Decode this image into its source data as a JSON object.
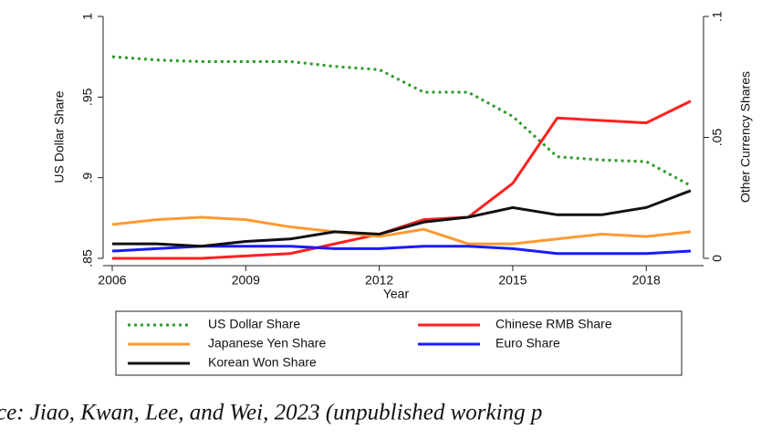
{
  "chart_data": {
    "type": "line",
    "x_label": "Year",
    "y_label": "US Dollar Share",
    "y2_label": "Other Currency Shares",
    "x": [
      2006,
      2007,
      2008,
      2009,
      2010,
      2011,
      2012,
      2013,
      2014,
      2015,
      2016,
      2017,
      2018,
      2019
    ],
    "xlim": [
      2006,
      2019
    ],
    "xticks": [
      2006,
      2009,
      2012,
      2015,
      2018
    ],
    "ylim": [
      0.85,
      1
    ],
    "yticks": [
      {
        "value": 0.85,
        "label": ".85"
      },
      {
        "value": 0.9,
        "label": ".9"
      },
      {
        "value": 0.95,
        "label": ".95"
      },
      1
    ],
    "y2lim": [
      0,
      0.1
    ],
    "y2ticks": [
      0,
      {
        "value": 0.05,
        "label": ".05"
      },
      {
        "value": 0.1,
        "label": ".1"
      }
    ],
    "series": [
      {
        "name": "US Dollar Share",
        "color": "#2e9a2e",
        "style": "dotted",
        "values": [
          0.975,
          0.973,
          0.972,
          0.972,
          0.972,
          0.969,
          0.967,
          0.953,
          0.953,
          0.938,
          0.913,
          0.911,
          0.91,
          0.895
        ]
      },
      {
        "name": "Chinese RMB Share",
        "color": "#ff2020",
        "axis": "y2",
        "values": [
          0.0,
          0.0,
          0.0,
          0.001,
          0.002,
          0.006,
          0.01,
          0.016,
          0.017,
          0.031,
          0.058,
          0.057,
          0.056,
          0.065
        ]
      },
      {
        "name": "Japanese Yen Share",
        "color": "#ff9a30",
        "axis": "y2",
        "values": [
          0.014,
          0.016,
          0.017,
          0.016,
          0.013,
          0.011,
          0.009,
          0.012,
          0.006,
          0.006,
          0.008,
          0.01,
          0.009,
          0.011
        ]
      },
      {
        "name": "Euro Share",
        "color": "#1a1aff",
        "axis": "y2",
        "values": [
          0.003,
          0.004,
          0.005,
          0.005,
          0.005,
          0.004,
          0.004,
          0.005,
          0.005,
          0.004,
          0.002,
          0.002,
          0.002,
          0.003
        ]
      },
      {
        "name": "Korean Won Share",
        "color": "#111111",
        "axis": "y2",
        "values": [
          0.006,
          0.006,
          0.005,
          0.007,
          0.008,
          0.011,
          0.01,
          0.015,
          0.017,
          0.021,
          0.018,
          0.018,
          0.021,
          0.028
        ]
      }
    ],
    "caption": "ce: Jiao, Kwan, Lee, and Wei, 2023 (unpublished working p"
  }
}
